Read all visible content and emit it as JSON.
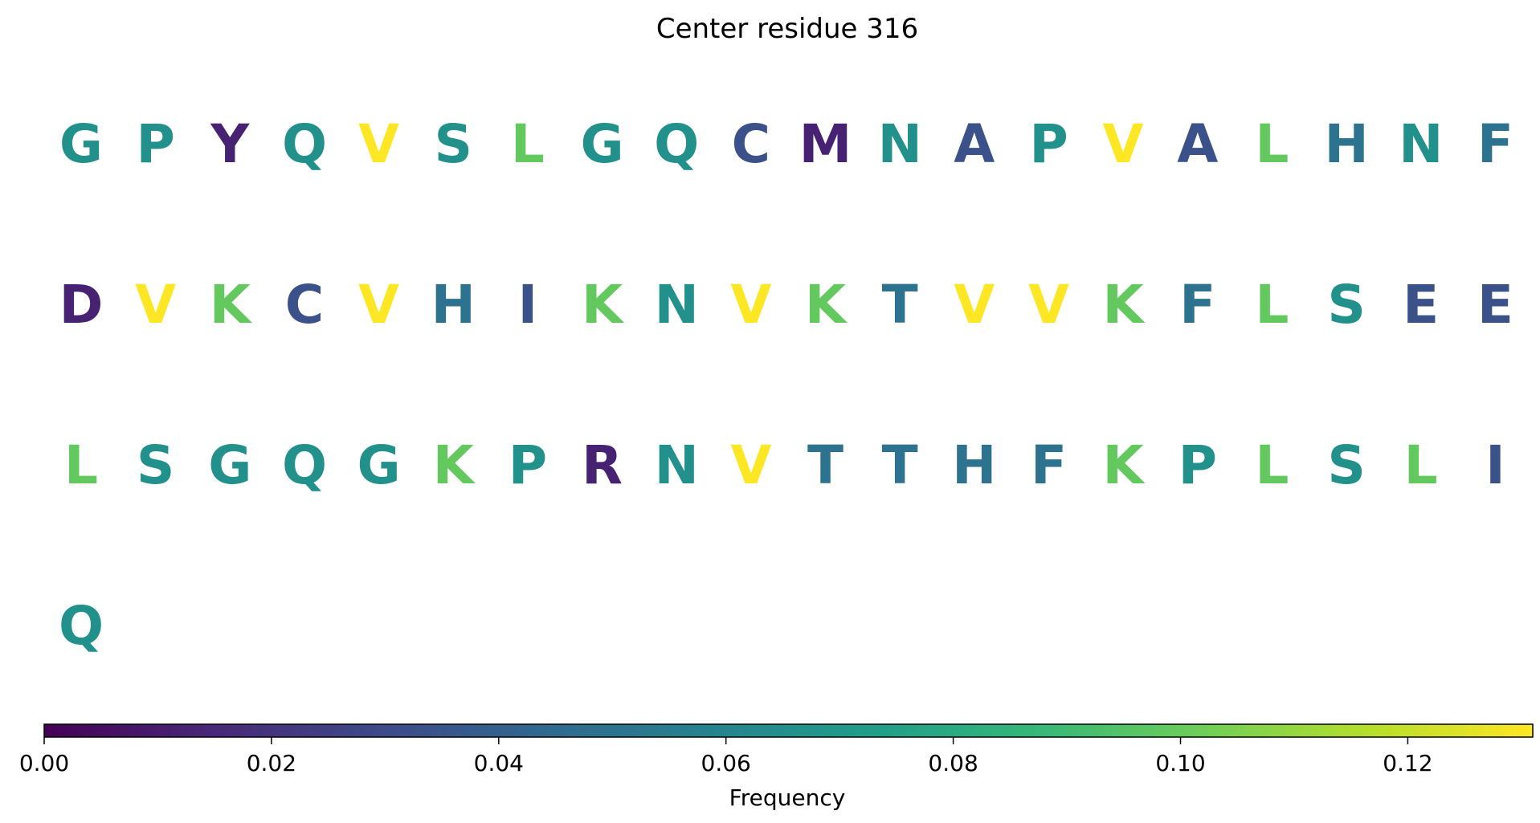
{
  "chart_data": {
    "type": "heatmap",
    "title": "Center residue 316",
    "rows": [
      [
        "G",
        "P",
        "Y",
        "Q",
        "V",
        "S",
        "L",
        "G",
        "Q",
        "C",
        "M",
        "N",
        "A",
        "P",
        "V",
        "A",
        "L",
        "H",
        "N",
        "F"
      ],
      [
        "D",
        "V",
        "K",
        "C",
        "V",
        "H",
        "I",
        "K",
        "N",
        "V",
        "K",
        "T",
        "V",
        "V",
        "K",
        "F",
        "L",
        "S",
        "E",
        "E"
      ],
      [
        "L",
        "S",
        "G",
        "Q",
        "G",
        "K",
        "P",
        "R",
        "N",
        "V",
        "T",
        "T",
        "H",
        "F",
        "K",
        "P",
        "L",
        "S",
        "L",
        "I"
      ],
      [
        "Q"
      ]
    ],
    "values": [
      [
        0.066,
        0.066,
        0.012,
        0.066,
        0.131,
        0.066,
        0.099,
        0.066,
        0.066,
        0.033,
        0.012,
        0.066,
        0.033,
        0.066,
        0.131,
        0.033,
        0.099,
        0.049,
        0.066,
        0.049
      ],
      [
        0.012,
        0.131,
        0.099,
        0.033,
        0.131,
        0.049,
        0.033,
        0.099,
        0.066,
        0.131,
        0.099,
        0.049,
        0.131,
        0.131,
        0.099,
        0.049,
        0.099,
        0.066,
        0.033,
        0.033
      ],
      [
        0.099,
        0.066,
        0.066,
        0.066,
        0.066,
        0.099,
        0.066,
        0.012,
        0.066,
        0.131,
        0.049,
        0.049,
        0.049,
        0.049,
        0.099,
        0.066,
        0.099,
        0.066,
        0.099,
        0.033
      ],
      [
        0.066
      ]
    ],
    "colorbar": {
      "label": "Frequency",
      "range": [
        0,
        0.131
      ],
      "ticks": [
        0.0,
        0.02,
        0.04,
        0.06,
        0.08,
        0.1,
        0.12
      ],
      "tick_labels": [
        "0.00",
        "0.02",
        "0.04",
        "0.06",
        "0.08",
        "0.10",
        "0.12"
      ],
      "colormap": "viridis",
      "colormap_stops": [
        "#440154",
        "#482878",
        "#3e4989",
        "#31688e",
        "#26828e",
        "#1f9e89",
        "#35b779",
        "#6ece58",
        "#b5de2b",
        "#fde725"
      ]
    }
  }
}
